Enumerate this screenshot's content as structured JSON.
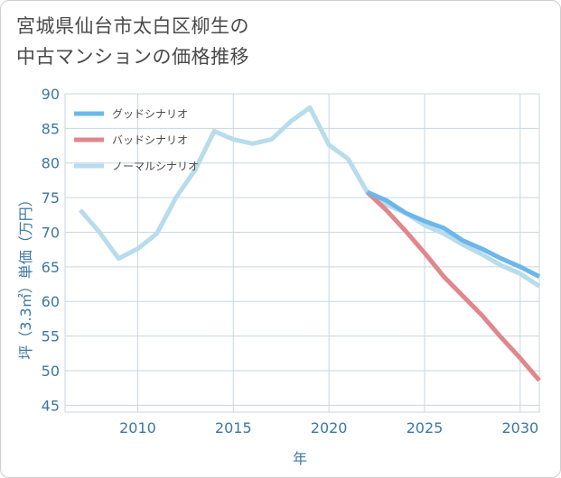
{
  "title_line1": "宮城県仙台市太白区柳生の",
  "title_line2": "中古マンションの価格推移",
  "chart_data": {
    "type": "line",
    "xlabel": "年",
    "ylabel": "坪（3.3㎡）単価（万円）",
    "xlim": [
      2006.2,
      2031
    ],
    "ylim": [
      44,
      90
    ],
    "x_ticks": [
      2010,
      2015,
      2020,
      2025,
      2030
    ],
    "y_ticks": [
      45,
      50,
      55,
      60,
      65,
      70,
      75,
      80,
      85,
      90
    ],
    "grid": true,
    "legend_position": "top-left",
    "series": [
      {
        "name": "グッドシナリオ",
        "color": "#6cb7ea",
        "x": [
          2022,
          2023,
          2024,
          2025,
          2026,
          2027,
          2028,
          2029,
          2030,
          2031
        ],
        "y": [
          75.8,
          74.6,
          72.8,
          71.6,
          70.6,
          68.8,
          67.6,
          66.2,
          65.0,
          63.6
        ]
      },
      {
        "name": "バッドシナリオ",
        "color": "#e0878d",
        "x": [
          2022,
          2023,
          2024,
          2025,
          2026,
          2027,
          2028,
          2029,
          2030,
          2031
        ],
        "y": [
          75.8,
          73.2,
          70.2,
          67.0,
          63.6,
          60.8,
          58.0,
          54.8,
          51.8,
          48.6
        ]
      },
      {
        "name": "ノーマルシナリオ",
        "color": "#b7dcec",
        "x": [
          2007,
          2008,
          2009,
          2010,
          2011,
          2012,
          2013,
          2014,
          2015,
          2016,
          2017,
          2018,
          2019,
          2020,
          2021,
          2022,
          2023,
          2024,
          2025,
          2026,
          2027,
          2028,
          2029,
          2030,
          2031
        ],
        "y": [
          73.2,
          70.0,
          66.2,
          67.6,
          69.8,
          75.0,
          79.0,
          84.6,
          83.4,
          82.8,
          83.4,
          86.0,
          88.0,
          82.6,
          80.6,
          75.8,
          74.0,
          72.8,
          71.0,
          69.8,
          68.2,
          66.8,
          65.2,
          64.0,
          62.2
        ]
      }
    ]
  }
}
